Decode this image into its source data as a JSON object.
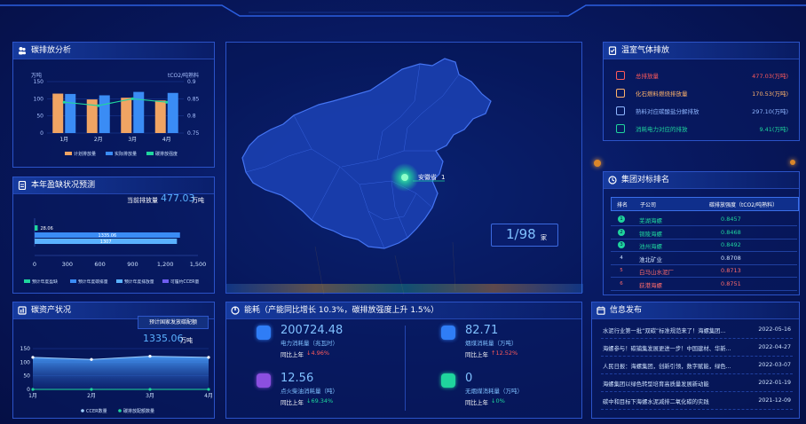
{
  "carbon_panel": {
    "title": "碳排放分析",
    "unit_left": "万吨",
    "unit_right": "tCO2/吨熟料",
    "legend": [
      "计划排放量",
      "实际排放量",
      "碳排放强度"
    ],
    "chart_data": {
      "type": "bar",
      "categories": [
        "1月",
        "2月",
        "3月",
        "4月"
      ],
      "series": [
        {
          "name": "计划排放量",
          "values": [
            115,
            98,
            103,
            95
          ]
        },
        {
          "name": "实际排放量",
          "values": [
            114,
            110,
            120,
            117
          ]
        },
        {
          "name": "碳排放强度",
          "values": [
            0.84,
            0.83,
            0.85,
            0.84
          ]
        }
      ],
      "ylim": [
        0,
        150
      ],
      "y2lim": [
        0.75,
        0.9
      ],
      "yticks": [
        "150",
        "100",
        "50",
        "0"
      ],
      "y2ticks": [
        "0.9",
        "0.85",
        "0.8",
        "0.75"
      ]
    },
    "colors": {
      "plan": "#f0a463",
      "actual": "#3a8cf5",
      "intensity": "#1fd59d"
    }
  },
  "forecast_panel": {
    "title": "本年盈缺状况预测",
    "current_label": "当前排放量",
    "current_value": "477.03",
    "current_unit": "万吨",
    "bars": [
      {
        "label": "28.06",
        "value": 28.06
      },
      {
        "label": "1335.06",
        "value": 1335.06
      },
      {
        "label": "1307",
        "value": 1307
      }
    ],
    "xticks": [
      "0",
      "300",
      "600",
      "900",
      "1,200",
      "1,500"
    ],
    "legend": [
      "预计年度盈缺",
      "预计年度碳排量",
      "预计年度排放量",
      "可履约CCER量"
    ]
  },
  "asset_panel": {
    "title": "碳资产状况",
    "badge": "预计国家发放碳配额",
    "value": "1335.06",
    "unit": "万吨",
    "chart_data": {
      "type": "area",
      "categories": [
        "1月",
        "2月",
        "3月",
        "4月"
      ],
      "series": [
        {
          "name": "CCER数量",
          "values": [
            118,
            110,
            122,
            118
          ]
        },
        {
          "name": "碳排放配额数量",
          "values": [
            0,
            0,
            0,
            0
          ]
        }
      ],
      "ylim": [
        0,
        150
      ],
      "yticks": [
        "150",
        "100",
        "50",
        "0"
      ]
    },
    "legend": [
      "CCER数量",
      "碳排放配额数量"
    ]
  },
  "map": {
    "marker_label": "安徽省",
    "marker_count": "1",
    "badge_value": "1/98",
    "badge_unit": "家"
  },
  "energy_panel": {
    "title": "能耗（产能同比增长 10.3%，碳排放强度上升 1.5%）",
    "items": [
      {
        "value": "200724.48",
        "label": "电力消耗量（兆瓦时）",
        "yoy_label": "同比上年",
        "yoy": "↓4.96%",
        "yoy_color": "#ff5a5a",
        "icon": "power-icon",
        "color": "#2f7df6"
      },
      {
        "value": "82.71",
        "label": "烟煤消耗量（万吨）",
        "yoy_label": "同比上年",
        "yoy": "↑12.52%",
        "yoy_color": "#ff5a5a",
        "icon": "coal-icon",
        "color": "#2f7df6"
      },
      {
        "value": "12.56",
        "label": "点火柴油消耗量（吨）",
        "yoy_label": "同比上年",
        "yoy": "↓69.34%",
        "yoy_color": "#1fd59d",
        "icon": "fuel-icon",
        "color": "#8b4fe0"
      },
      {
        "value": "0",
        "label": "无烟煤消耗量（万吨）",
        "yoy_label": "同比上年",
        "yoy": "↓0%",
        "yoy_color": "#1fd59d",
        "icon": "anthracite-icon",
        "color": "#1fd59d"
      }
    ]
  },
  "ghg_panel": {
    "title": "温室气体排放",
    "items": [
      {
        "label": "总排放量",
        "value": "477.03(万吨)",
        "color": "#ff5a5a"
      },
      {
        "label": "化石燃料燃烧排放量",
        "value": "170.53(万吨)",
        "color": "#ffb36b"
      },
      {
        "label": "熟料对应碳酸盐分解排放",
        "value": "297.10(万吨)",
        "color": "#8fb6ff"
      },
      {
        "label": "消耗电力对应的排放",
        "value": "9.41(万吨)",
        "color": "#1fd59d"
      }
    ]
  },
  "rank_panel": {
    "title": "集团对标排名",
    "headers": [
      "排名",
      "子公司",
      "碳排放强度（tCO2/吨熟料）"
    ],
    "rows": [
      {
        "rank": "1",
        "name": "芜湖海螺",
        "value": "0.8457",
        "color": "#1fd59d"
      },
      {
        "rank": "2",
        "name": "铜陵海螺",
        "value": "0.8468",
        "color": "#1fd59d"
      },
      {
        "rank": "3",
        "name": "池州海螺",
        "value": "0.8492",
        "color": "#1fd59d"
      },
      {
        "rank": "4",
        "name": "淮北矿业",
        "value": "0.8708",
        "color": "#cfe3ff"
      },
      {
        "rank": "5",
        "name": "白马山水泥厂",
        "value": "0.8713",
        "color": "#ff6b6b"
      },
      {
        "rank": "6",
        "name": "荻港海螺",
        "value": "0.8751",
        "color": "#ff6b6b"
      }
    ]
  },
  "news_panel": {
    "title": "信息发布",
    "items": [
      {
        "text": "水泥行业第一批“双碳”标准规范来了！海螺集团...",
        "date": "2022-05-16"
      },
      {
        "text": "海螺参与！碳捕集发展更进一步！中国建材、华新...",
        "date": "2022-04-27"
      },
      {
        "text": "人民日报：海螺集团，创新引领，数字赋能，绿色...",
        "date": "2022-03-07"
      },
      {
        "text": "海螺集团以绿色转型培育高质量发展新动能",
        "date": "2022-01-19"
      },
      {
        "text": "碳中和目标下海螺水泥减排二氧化碳的实践",
        "date": "2021-12-09"
      }
    ]
  }
}
